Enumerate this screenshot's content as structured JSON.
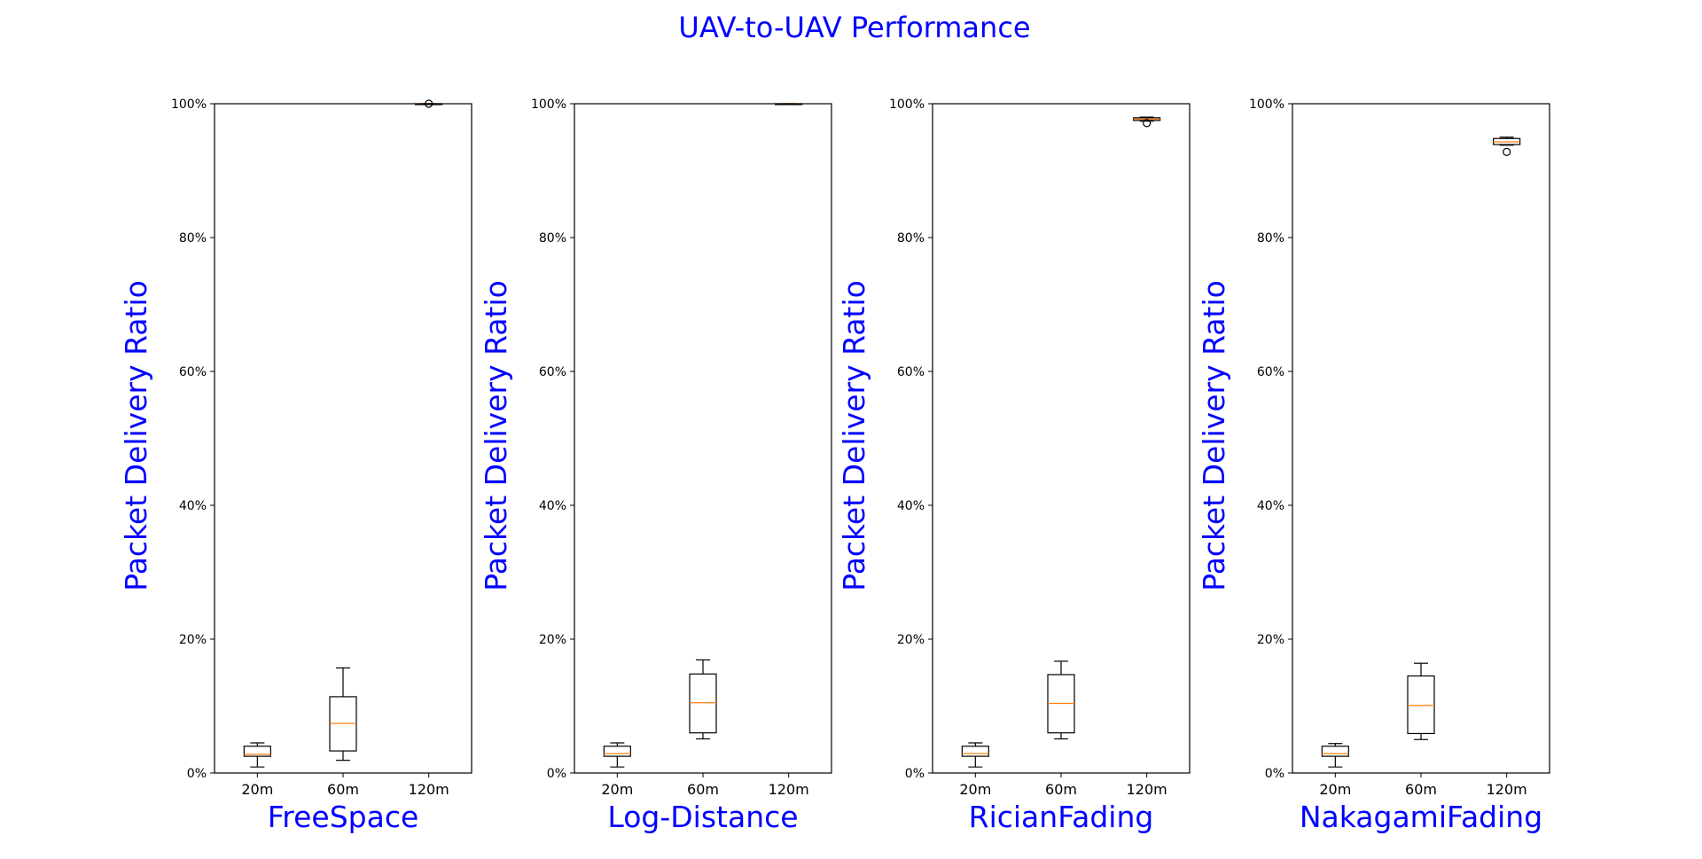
{
  "figure": {
    "title": "UAV-to-UAV Performance",
    "title_color": "#0000ff",
    "label_color": "#0000ff"
  },
  "chart_data": [
    {
      "type": "boxplot",
      "xlabel": "FreeSpace",
      "ylabel": "Packet Delivery Ratio",
      "ylim": [
        0,
        100
      ],
      "yticks": [
        "0%",
        "20%",
        "40%",
        "60%",
        "80%",
        "100%"
      ],
      "categories": [
        "20m",
        "60m",
        "120m"
      ],
      "boxes": [
        {
          "whislo": 0.9,
          "q1": 2.5,
          "med": 2.8,
          "q3": 4.0,
          "whishi": 4.5,
          "fliers": []
        },
        {
          "whislo": 1.9,
          "q1": 3.3,
          "med": 7.4,
          "q3": 11.4,
          "whishi": 15.7,
          "fliers": []
        },
        {
          "whislo": 100,
          "q1": 100,
          "med": 100,
          "q3": 100,
          "whishi": 100,
          "fliers": [
            100
          ]
        }
      ]
    },
    {
      "type": "boxplot",
      "xlabel": "Log-Distance",
      "ylabel": "Packet Delivery Ratio",
      "ylim": [
        0,
        100
      ],
      "yticks": [
        "0%",
        "20%",
        "40%",
        "60%",
        "80%",
        "100%"
      ],
      "categories": [
        "20m",
        "60m",
        "120m"
      ],
      "boxes": [
        {
          "whislo": 0.9,
          "q1": 2.5,
          "med": 2.9,
          "q3": 4.0,
          "whishi": 4.5,
          "fliers": []
        },
        {
          "whislo": 5.1,
          "q1": 6.0,
          "med": 10.5,
          "q3": 14.8,
          "whishi": 16.9,
          "fliers": []
        },
        {
          "whislo": 99.9,
          "q1": 99.9,
          "med": 100,
          "q3": 100,
          "whishi": 100,
          "fliers": []
        }
      ]
    },
    {
      "type": "boxplot",
      "xlabel": "RicianFading",
      "ylabel": "Packet Delivery Ratio",
      "ylim": [
        0,
        100
      ],
      "yticks": [
        "0%",
        "20%",
        "40%",
        "60%",
        "80%",
        "100%"
      ],
      "categories": [
        "20m",
        "60m",
        "120m"
      ],
      "boxes": [
        {
          "whislo": 0.9,
          "q1": 2.5,
          "med": 2.9,
          "q3": 4.0,
          "whishi": 4.5,
          "fliers": []
        },
        {
          "whislo": 5.1,
          "q1": 6.0,
          "med": 10.4,
          "q3": 14.7,
          "whishi": 16.7,
          "fliers": []
        },
        {
          "whislo": 97.4,
          "q1": 97.5,
          "med": 97.7,
          "q3": 97.9,
          "whishi": 98.0,
          "fliers": [
            97.1
          ]
        }
      ]
    },
    {
      "type": "boxplot",
      "xlabel": "NakagamiFading",
      "ylabel": "Packet Delivery Ratio",
      "ylim": [
        0,
        100
      ],
      "yticks": [
        "0%",
        "20%",
        "40%",
        "60%",
        "80%",
        "100%"
      ],
      "categories": [
        "20m",
        "60m",
        "120m"
      ],
      "boxes": [
        {
          "whislo": 0.9,
          "q1": 2.5,
          "med": 2.9,
          "q3": 4.0,
          "whishi": 4.4,
          "fliers": []
        },
        {
          "whislo": 5.0,
          "q1": 5.9,
          "med": 10.1,
          "q3": 14.5,
          "whishi": 16.4,
          "fliers": []
        },
        {
          "whislo": 93.8,
          "q1": 93.9,
          "med": 94.3,
          "q3": 94.8,
          "whishi": 95.0,
          "fliers": [
            92.8
          ]
        }
      ]
    }
  ]
}
